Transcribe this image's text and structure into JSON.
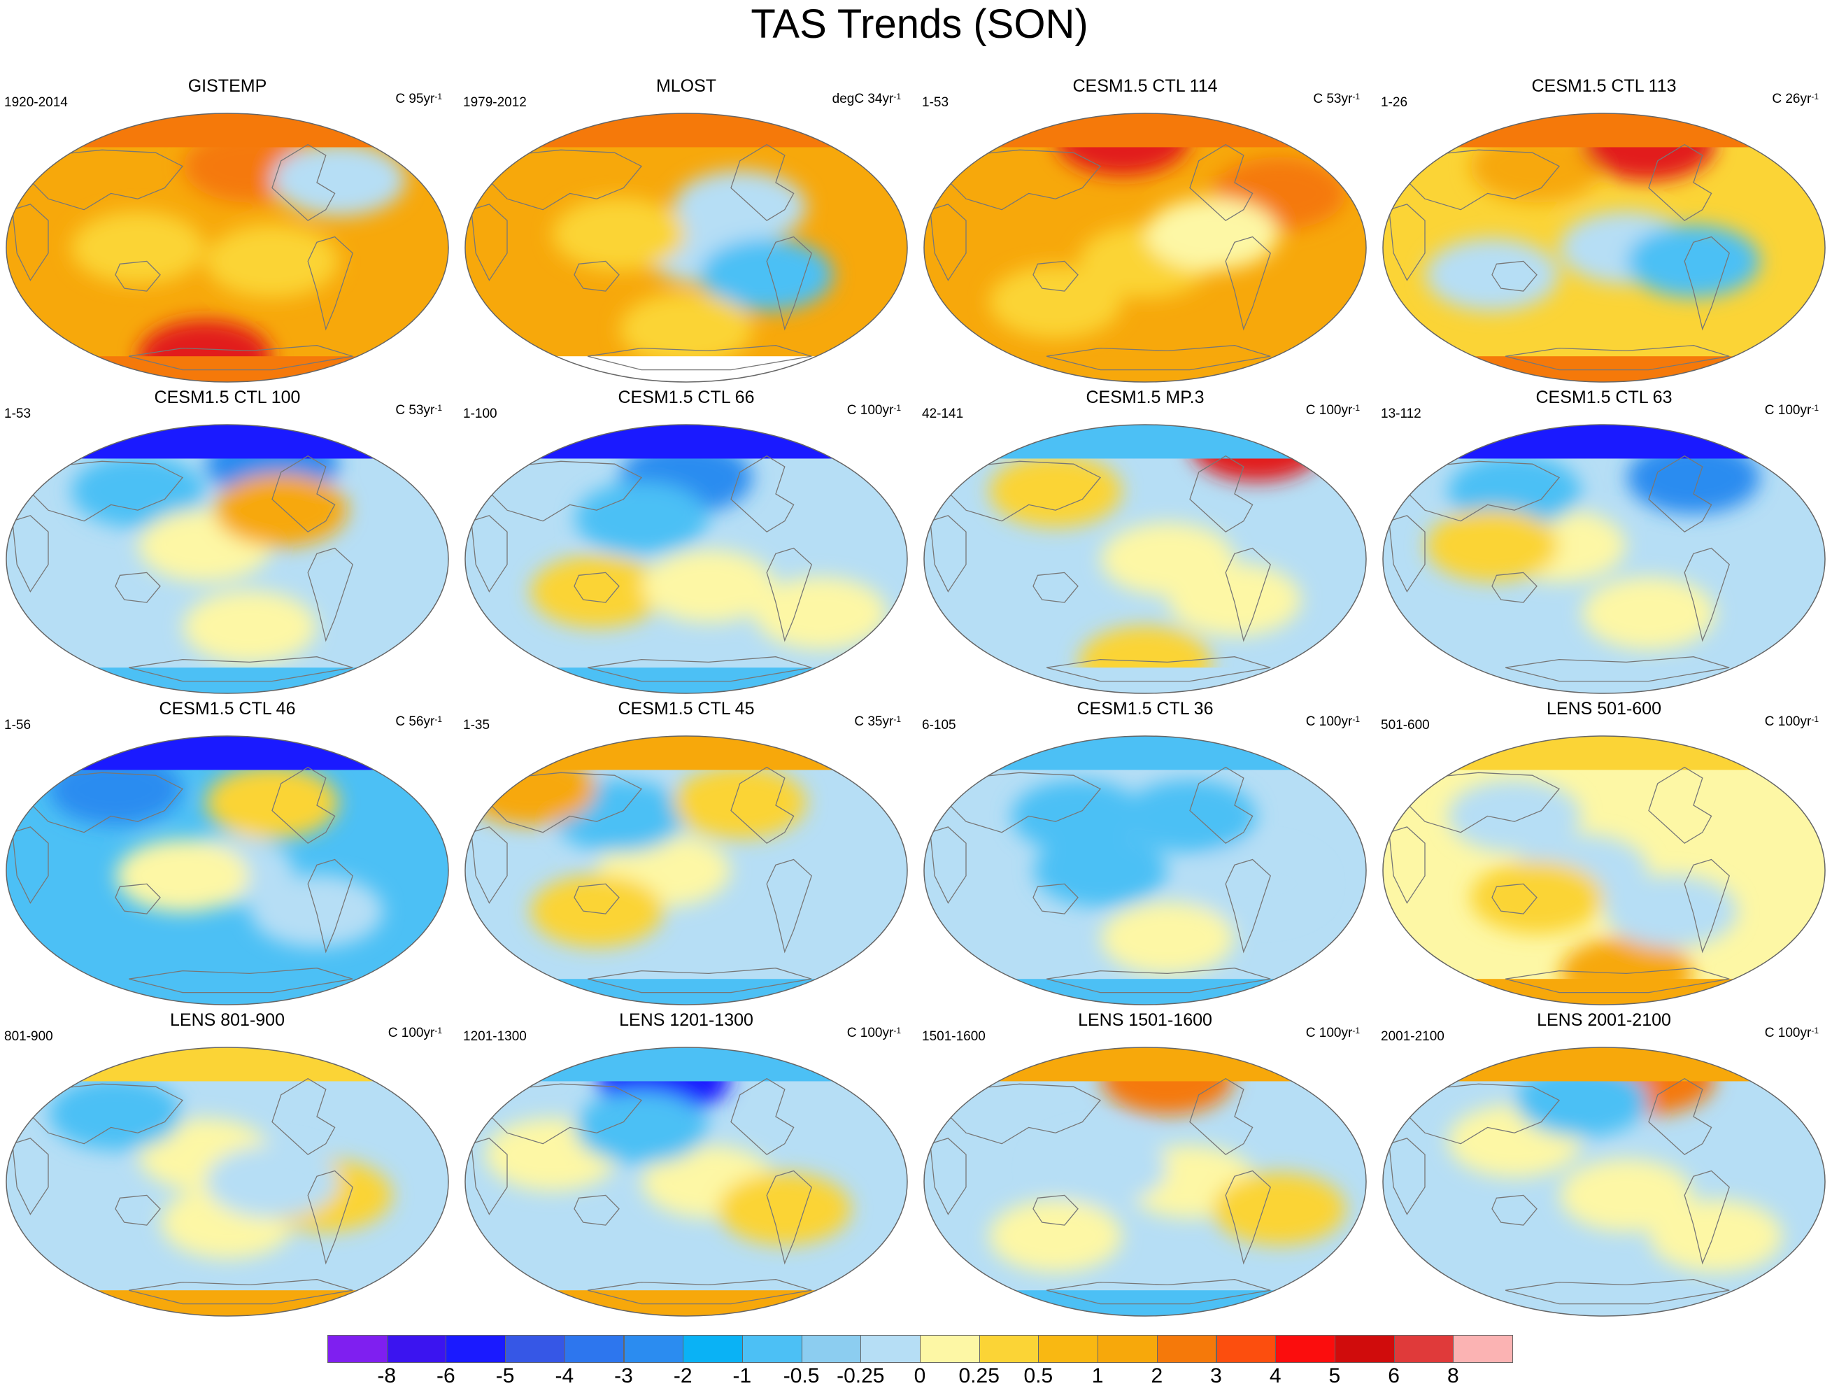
{
  "title": "TAS Trends (SON)",
  "palette": {
    "very_cold": "#1a1aff",
    "cold": "#2b8cf0",
    "cool": "#4cc0f5",
    "light_cool": "#b6def5",
    "neutral_warm": "#fdf7a5",
    "light_warm": "#fbd436",
    "warm": "#f7a80b",
    "hot": "#f5790a",
    "very_hot": "#e21a1a",
    "no_data": "#ffffff"
  },
  "panels": [
    {
      "title": "GISTEMP",
      "range": "1920-2014",
      "units_prefix": "C 95yr",
      "units_exp": "-1",
      "base": "warm",
      "polar_n": "hot",
      "polar_s": "hot",
      "blobs": [
        [
          "light_warm",
          0.3,
          0.5
        ],
        [
          "hot",
          0.55,
          0.2
        ],
        [
          "light_cool",
          0.75,
          0.25
        ],
        [
          "very_hot",
          0.45,
          0.9
        ],
        [
          "light_warm",
          0.6,
          0.55
        ]
      ]
    },
    {
      "title": "MLOST",
      "range": "1979-2012",
      "units_prefix": "degC 34yr",
      "units_exp": "-1",
      "base": "warm",
      "polar_n": "hot",
      "polar_s": "no_data",
      "blobs": [
        [
          "light_cool",
          0.55,
          0.5
        ],
        [
          "light_cool",
          0.62,
          0.35
        ],
        [
          "light_warm",
          0.35,
          0.45
        ],
        [
          "cool",
          0.68,
          0.6
        ],
        [
          "light_warm",
          0.5,
          0.8
        ]
      ]
    },
    {
      "title": "CESM1.5 CTL 114",
      "range": "1-53",
      "units_prefix": "C 53yr",
      "units_exp": "-1",
      "base": "warm",
      "polar_n": "hot",
      "polar_s": "warm",
      "blobs": [
        [
          "very_hot",
          0.45,
          0.1
        ],
        [
          "light_warm",
          0.5,
          0.55
        ],
        [
          "light_warm",
          0.3,
          0.7
        ],
        [
          "hot",
          0.8,
          0.3
        ],
        [
          "neutral_warm",
          0.65,
          0.45
        ]
      ]
    },
    {
      "title": "CESM1.5 CTL 113",
      "range": "1-26",
      "units_prefix": "C 26yr",
      "units_exp": "-1",
      "base": "light_warm",
      "polar_n": "hot",
      "polar_s": "hot",
      "blobs": [
        [
          "light_cool",
          0.25,
          0.6
        ],
        [
          "light_cool",
          0.55,
          0.5
        ],
        [
          "cool",
          0.7,
          0.55
        ],
        [
          "warm",
          0.35,
          0.2
        ],
        [
          "very_hot",
          0.6,
          0.12
        ]
      ]
    },
    {
      "title": "CESM1.5 CTL 100",
      "range": "1-53",
      "units_prefix": "C 53yr",
      "units_exp": "-1",
      "base": "light_cool",
      "polar_n": "very_cold",
      "polar_s": "cool",
      "blobs": [
        [
          "cool",
          0.3,
          0.25
        ],
        [
          "neutral_warm",
          0.45,
          0.45
        ],
        [
          "neutral_warm",
          0.55,
          0.75
        ],
        [
          "cold",
          0.6,
          0.15
        ],
        [
          "warm",
          0.62,
          0.32
        ]
      ]
    },
    {
      "title": "CESM1.5 CTL 66",
      "range": "1-100",
      "units_prefix": "C 100yr",
      "units_exp": "-1",
      "base": "light_cool",
      "polar_n": "very_cold",
      "polar_s": "cool",
      "blobs": [
        [
          "cold",
          0.5,
          0.2
        ],
        [
          "light_warm",
          0.3,
          0.62
        ],
        [
          "neutral_warm",
          0.55,
          0.6
        ],
        [
          "neutral_warm",
          0.8,
          0.7
        ],
        [
          "cool",
          0.4,
          0.35
        ]
      ]
    },
    {
      "title": "CESM1.5 MP.3",
      "range": "42-141",
      "units_prefix": "C 100yr",
      "units_exp": "-1",
      "base": "light_cool",
      "polar_n": "cool",
      "polar_s": "light_cool",
      "blobs": [
        [
          "neutral_warm",
          0.55,
          0.5
        ],
        [
          "light_warm",
          0.3,
          0.25
        ],
        [
          "very_hot",
          0.75,
          0.08
        ],
        [
          "light_warm",
          0.5,
          0.88
        ],
        [
          "neutral_warm",
          0.7,
          0.65
        ]
      ]
    },
    {
      "title": "CESM1.5 CTL 63",
      "range": "13-112",
      "units_prefix": "C 100yr",
      "units_exp": "-1",
      "base": "light_cool",
      "polar_n": "very_cold",
      "polar_s": "light_cool",
      "blobs": [
        [
          "neutral_warm",
          0.4,
          0.45
        ],
        [
          "neutral_warm",
          0.6,
          0.7
        ],
        [
          "cool",
          0.3,
          0.25
        ],
        [
          "light_warm",
          0.25,
          0.45
        ],
        [
          "cold",
          0.7,
          0.2
        ]
      ]
    },
    {
      "title": "CESM1.5 CTL 46",
      "range": "1-56",
      "units_prefix": "C 56yr",
      "units_exp": "-1",
      "base": "cool",
      "polar_n": "very_cold",
      "polar_s": "cool",
      "blobs": [
        [
          "light_cool",
          0.5,
          0.5
        ],
        [
          "neutral_warm",
          0.4,
          0.52
        ],
        [
          "light_warm",
          0.6,
          0.25
        ],
        [
          "cold",
          0.25,
          0.2
        ],
        [
          "light_cool",
          0.7,
          0.65
        ]
      ]
    },
    {
      "title": "CESM1.5 CTL 45",
      "range": "1-35",
      "units_prefix": "C 35yr",
      "units_exp": "-1",
      "base": "light_cool",
      "polar_n": "warm",
      "polar_s": "cool",
      "blobs": [
        [
          "neutral_warm",
          0.45,
          0.5
        ],
        [
          "light_warm",
          0.3,
          0.65
        ],
        [
          "cool",
          0.35,
          0.3
        ],
        [
          "warm",
          0.15,
          0.2
        ],
        [
          "light_warm",
          0.62,
          0.25
        ]
      ]
    },
    {
      "title": "CESM1.5 CTL 36",
      "range": "6-105",
      "units_prefix": "C 100yr",
      "units_exp": "-1",
      "base": "light_cool",
      "polar_n": "cool",
      "polar_s": "cool",
      "blobs": [
        [
          "cool",
          0.4,
          0.5
        ],
        [
          "cool",
          0.6,
          0.3
        ],
        [
          "neutral_warm",
          0.55,
          0.75
        ],
        [
          "light_cool",
          0.75,
          0.55
        ],
        [
          "cool",
          0.35,
          0.3
        ]
      ]
    },
    {
      "title": "LENS 501-600",
      "range": "501-600",
      "units_prefix": "C 100yr",
      "units_exp": "-1",
      "base": "neutral_warm",
      "polar_n": "light_warm",
      "polar_s": "warm",
      "blobs": [
        [
          "light_cool",
          0.45,
          0.5
        ],
        [
          "light_cool",
          0.3,
          0.3
        ],
        [
          "light_warm",
          0.35,
          0.6
        ],
        [
          "warm",
          0.55,
          0.88
        ],
        [
          "light_cool",
          0.65,
          0.65
        ]
      ]
    },
    {
      "title": "LENS 801-900",
      "range": "801-900",
      "units_prefix": "C 100yr",
      "units_exp": "-1",
      "base": "light_cool",
      "polar_n": "light_warm",
      "polar_s": "warm",
      "blobs": [
        [
          "neutral_warm",
          0.45,
          0.4
        ],
        [
          "neutral_warm",
          0.5,
          0.65
        ],
        [
          "cool",
          0.25,
          0.25
        ],
        [
          "light_warm",
          0.72,
          0.55
        ],
        [
          "light_cool",
          0.6,
          0.5
        ]
      ]
    },
    {
      "title": "LENS 1201-1300",
      "range": "1201-1300",
      "units_prefix": "C 100yr",
      "units_exp": "-1",
      "base": "light_cool",
      "polar_n": "cool",
      "polar_s": "warm",
      "blobs": [
        [
          "very_cold",
          0.45,
          0.12
        ],
        [
          "neutral_warm",
          0.2,
          0.4
        ],
        [
          "neutral_warm",
          0.55,
          0.5
        ],
        [
          "light_warm",
          0.72,
          0.6
        ],
        [
          "cool",
          0.4,
          0.3
        ]
      ]
    },
    {
      "title": "LENS 1501-1600",
      "range": "1501-1600",
      "units_prefix": "C 100yr",
      "units_exp": "-1",
      "base": "light_cool",
      "polar_n": "warm",
      "polar_s": "cool",
      "blobs": [
        [
          "neutral_warm",
          0.6,
          0.5
        ],
        [
          "hot",
          0.55,
          0.12
        ],
        [
          "neutral_warm",
          0.3,
          0.7
        ],
        [
          "light_cool",
          0.4,
          0.45
        ],
        [
          "light_warm",
          0.8,
          0.6
        ]
      ]
    },
    {
      "title": "LENS 2001-2100",
      "range": "2001-2100",
      "units_prefix": "C 100yr",
      "units_exp": "-1",
      "base": "light_cool",
      "polar_n": "warm",
      "polar_s": "light_cool",
      "blobs": [
        [
          "neutral_warm",
          0.3,
          0.35
        ],
        [
          "neutral_warm",
          0.55,
          0.55
        ],
        [
          "hot",
          0.6,
          0.12
        ],
        [
          "cool",
          0.45,
          0.2
        ],
        [
          "neutral_warm",
          0.75,
          0.7
        ]
      ]
    }
  ],
  "colorbar": {
    "colors": [
      "#7f1ff0",
      "#3b14f0",
      "#1a1aff",
      "#3657e6",
      "#2d76ee",
      "#2b8cf0",
      "#0ab2f5",
      "#4cc0f5",
      "#8ccdf0",
      "#b6def5",
      "#fdf7a5",
      "#fbd436",
      "#f9b812",
      "#f7a80b",
      "#f5790a",
      "#fc4e0e",
      "#fb0d0d",
      "#d00c0c",
      "#e03a3a",
      "#fbb3b3"
    ],
    "labels": [
      "-8",
      "-6",
      "-5",
      "-4",
      "-3",
      "-2",
      "-1",
      "-0.5",
      "-0.25",
      "0",
      "0.25",
      "0.5",
      "1",
      "2",
      "3",
      "4",
      "5",
      "6",
      "8"
    ]
  }
}
